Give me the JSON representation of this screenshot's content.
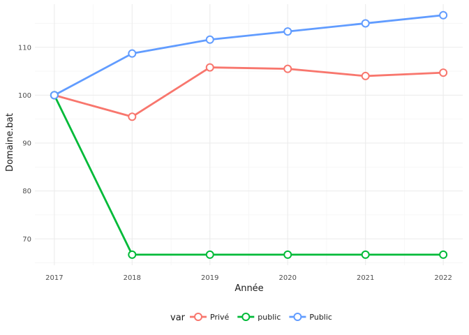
{
  "chart_data": {
    "type": "line",
    "x": [
      2017,
      2018,
      2019,
      2020,
      2021,
      2022
    ],
    "series": [
      {
        "name": "Privé",
        "color": "#F8766D",
        "values": [
          100,
          95.5,
          105.8,
          105.5,
          104.0,
          104.7
        ]
      },
      {
        "name": "public",
        "color": "#00BA38",
        "values": [
          100,
          66.7,
          66.7,
          66.7,
          66.7,
          66.7
        ]
      },
      {
        "name": "Public",
        "color": "#619CFF",
        "values": [
          100,
          108.7,
          111.6,
          113.3,
          115.0,
          116.7
        ]
      }
    ],
    "xlabel": "Année",
    "ylabel": "Domaine.bat",
    "xlim": [
      2016.75,
      2022.25
    ],
    "ylim": [
      64.5,
      119
    ],
    "y_ticks": [
      70,
      80,
      90,
      100,
      110
    ],
    "x_ticks": [
      2017,
      2018,
      2019,
      2020,
      2021,
      2022
    ],
    "grid": true,
    "legend": {
      "title": "var",
      "position": "bottom"
    }
  }
}
